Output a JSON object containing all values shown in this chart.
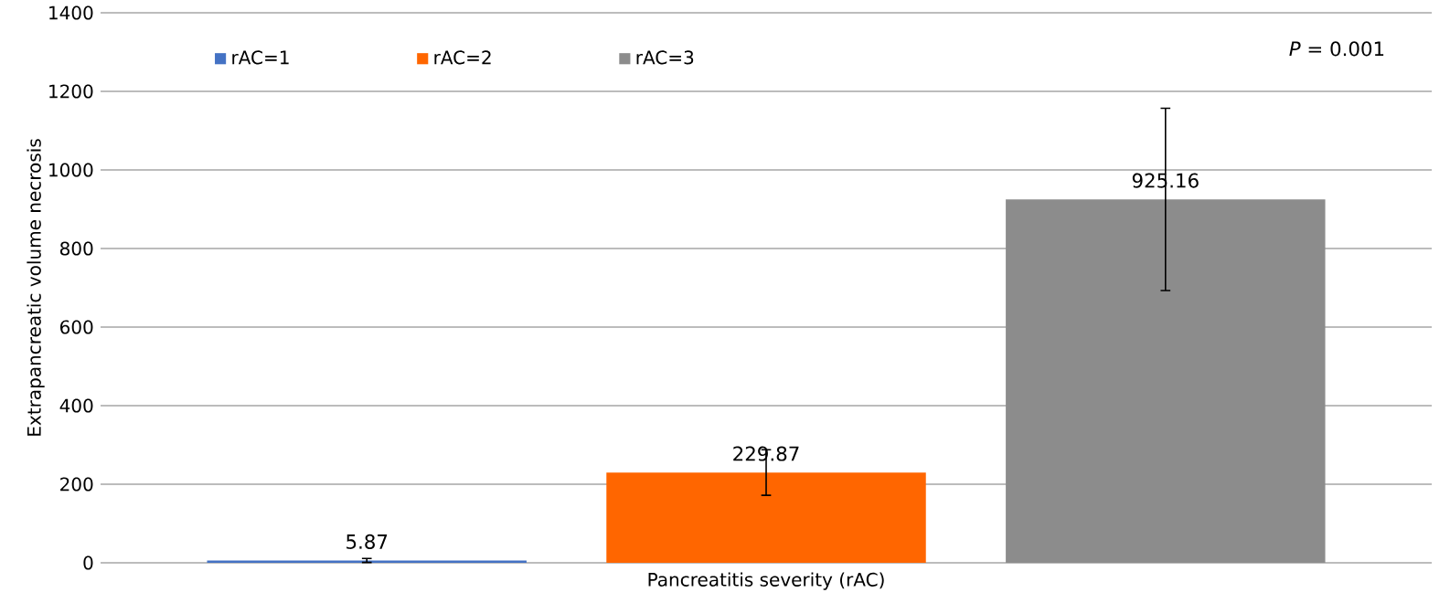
{
  "chart_data": {
    "type": "bar",
    "xlabel": "Pancreatitis severity (rAC)",
    "ylabel": "Extrapancreatic volume necrosis",
    "categories": [
      null
    ],
    "series": [
      {
        "name": "rAC=1",
        "color": "#4472c4",
        "values": [
          5.87
        ],
        "errors": [
          5
        ]
      },
      {
        "name": "rAC=2",
        "color": "#ff6600",
        "values": [
          229.87
        ],
        "errors": [
          58
        ]
      },
      {
        "name": "rAC=3",
        "color": "#8c8c8c",
        "values": [
          925.16
        ],
        "errors": [
          232
        ]
      }
    ],
    "ylim": [
      0,
      1400
    ],
    "yticks": [
      0,
      200,
      400,
      600,
      800,
      1000,
      1200,
      1400
    ],
    "grid": "y",
    "legend": "top left",
    "data_labels": true,
    "annotations": [
      "*P* = 0.001"
    ]
  }
}
